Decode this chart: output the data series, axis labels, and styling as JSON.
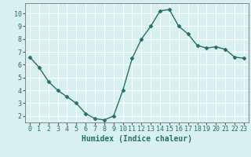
{
  "x": [
    0,
    1,
    2,
    3,
    4,
    5,
    6,
    7,
    8,
    9,
    10,
    11,
    12,
    13,
    14,
    15,
    16,
    17,
    18,
    19,
    20,
    21,
    22,
    23
  ],
  "y": [
    6.6,
    5.8,
    4.7,
    4.0,
    3.5,
    3.0,
    2.2,
    1.8,
    1.7,
    2.0,
    4.0,
    6.5,
    8.0,
    9.0,
    10.2,
    10.3,
    9.0,
    8.4,
    7.5,
    7.3,
    7.4,
    7.2,
    6.6,
    6.5
  ],
  "line_color": "#2a7060",
  "marker": "D",
  "marker_size": 2.5,
  "bg_color": "#d8f0f0",
  "grid_color": "#ffffff",
  "xlabel": "Humidex (Indice chaleur)",
  "xlim": [
    -0.5,
    23.5
  ],
  "ylim": [
    1.5,
    10.8
  ],
  "yticks": [
    2,
    3,
    4,
    5,
    6,
    7,
    8,
    9,
    10
  ],
  "xticks": [
    0,
    1,
    2,
    3,
    4,
    5,
    6,
    7,
    8,
    9,
    10,
    11,
    12,
    13,
    14,
    15,
    16,
    17,
    18,
    19,
    20,
    21,
    22,
    23
  ],
  "xlabel_fontsize": 7,
  "tick_fontsize": 6,
  "line_width": 1.0
}
